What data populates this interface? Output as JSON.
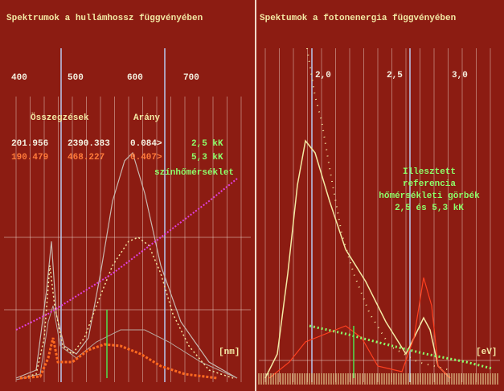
{
  "left_panel": {
    "title": "Spektrumok a hullámhossz függvényében",
    "axis_ticks": [
      "400",
      "500",
      "600",
      "700"
    ],
    "table": {
      "headers": [
        "Összegzések",
        "Arány"
      ],
      "rows": [
        [
          "201.956",
          "2390.383",
          "0.084>",
          "2,5 kK"
        ],
        [
          "190.479",
          "468.227",
          "0.407>",
          "5,3 kK"
        ]
      ]
    },
    "annotation": "színhőmérséklet",
    "unit": "[nm]"
  },
  "right_panel": {
    "title": "Spektumok a fotonenergia függvényében",
    "axis_ticks": [
      "2,0",
      "2,5",
      "3,0"
    ],
    "annotation": [
      "Illesztett",
      "referencia",
      "hőmérsékleti görbék",
      "2,5 és 5,3 kK"
    ],
    "unit": "[eV]"
  }
}
